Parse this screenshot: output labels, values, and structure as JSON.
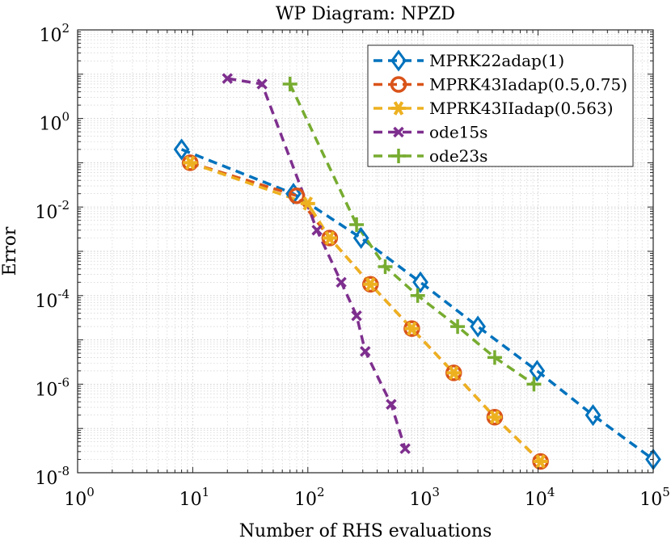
{
  "chart_data": {
    "type": "line",
    "title": "WP Diagram: NPZD",
    "xlabel": "Number of RHS evaluations",
    "ylabel": "Error",
    "xscale": "log",
    "yscale": "log",
    "xlim": [
      1,
      100000
    ],
    "ylim": [
      1e-08,
      100
    ],
    "grid": true,
    "legend_position": "top-right",
    "x_ticks": [
      {
        "base": "10",
        "exp": "0"
      },
      {
        "base": "10",
        "exp": "1"
      },
      {
        "base": "10",
        "exp": "2"
      },
      {
        "base": "10",
        "exp": "3"
      },
      {
        "base": "10",
        "exp": "4"
      },
      {
        "base": "10",
        "exp": "5"
      }
    ],
    "y_ticks": [
      {
        "base": "10",
        "exp": "-8"
      },
      {
        "base": "10",
        "exp": "-6"
      },
      {
        "base": "10",
        "exp": "-4"
      },
      {
        "base": "10",
        "exp": "-2"
      },
      {
        "base": "10",
        "exp": "0"
      },
      {
        "base": "10",
        "exp": "2"
      }
    ],
    "series": [
      {
        "name": "MPRK22adap(1)",
        "color": "#0072BD",
        "marker": "diamond",
        "x": [
          8,
          75,
          290,
          950,
          3000,
          9800,
          30000,
          100000
        ],
        "y": [
          0.2,
          0.02,
          0.002,
          0.0002,
          2e-05,
          2e-06,
          2e-07,
          2e-08
        ]
      },
      {
        "name": "MPRK43Iadap(0.5,0.75)",
        "color": "#D95319",
        "marker": "circle",
        "x": [
          9.5,
          80,
          155,
          350,
          800,
          1850,
          4200,
          10500
        ],
        "y": [
          0.1,
          0.018,
          0.002,
          0.00018,
          1.8e-05,
          1.8e-06,
          1.8e-07,
          1.8e-08
        ]
      },
      {
        "name": "MPRK43IIadap(0.563)",
        "color": "#EDB120",
        "marker": "asterisk",
        "x": [
          9.5,
          100,
          155,
          350,
          800,
          1850,
          4200,
          10500
        ],
        "y": [
          0.1,
          0.012,
          0.002,
          0.00018,
          1.8e-05,
          1.8e-06,
          1.8e-07,
          1.8e-08
        ]
      },
      {
        "name": "ode15s",
        "color": "#7E2F8E",
        "marker": "x",
        "x": [
          20,
          40,
          120,
          195,
          265,
          315,
          530,
          700
        ],
        "y": [
          8,
          6,
          0.003,
          0.0002,
          3.5e-05,
          5.5e-06,
          3.5e-07,
          3.5e-08
        ]
      },
      {
        "name": "ode23s",
        "color": "#77AC30",
        "marker": "plus",
        "x": [
          70,
          265,
          470,
          900,
          2000,
          4200,
          9200
        ],
        "y": [
          6,
          0.004,
          0.00045,
          0.0001,
          2e-05,
          4e-06,
          1e-06
        ]
      }
    ]
  }
}
